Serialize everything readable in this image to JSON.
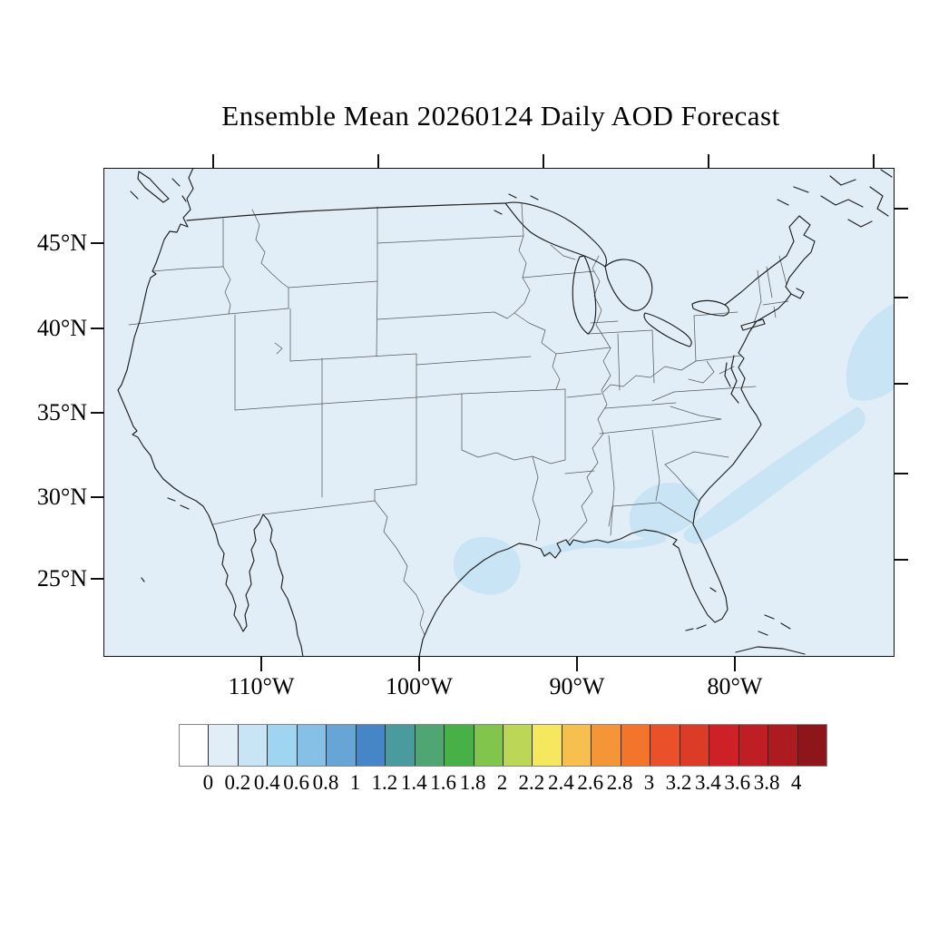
{
  "title": "Ensemble Mean 20260124 Daily AOD Forecast",
  "map": {
    "region": "Continental United States with state boundaries",
    "background_color": "#e1eef8",
    "patch_color": "#c9e4f5",
    "background_level": "0.0-0.2",
    "patch_level": "0.2-0.4"
  },
  "axes": {
    "left": {
      "labels": [
        "45°N",
        "40°N",
        "35°N",
        "30°N",
        "25°N"
      ]
    },
    "bottom": {
      "labels": [
        "110°W",
        "100°W",
        "90°W",
        "80°W"
      ]
    }
  },
  "colorbar": {
    "labels": [
      "0",
      "0.2",
      "0.4",
      "0.6",
      "0.8",
      "1",
      "1.2",
      "1.4",
      "1.6",
      "1.8",
      "2",
      "2.2",
      "2.4",
      "2.6",
      "2.8",
      "3",
      "3.2",
      "3.4",
      "3.6",
      "3.8",
      "4"
    ],
    "colors": [
      "#ffffff",
      "#e1eef8",
      "#c9e4f5",
      "#a0d5f2",
      "#86c0e6",
      "#67a5d7",
      "#4686c6",
      "#4a9b9e",
      "#4fa673",
      "#47b148",
      "#82c54d",
      "#bcd755",
      "#f5e85e",
      "#f7bf4d",
      "#f49538",
      "#f3752c",
      "#ea512a",
      "#dc3b28",
      "#cd2127",
      "#c01e25",
      "#ad1b20",
      "#8e1519"
    ]
  },
  "chart_data": {
    "type": "heatmap",
    "title": "Ensemble Mean 20260124 Daily AOD Forecast",
    "field": "Daily aerosol optical depth (AOD), ensemble mean forecast for 2026-01-24",
    "region": "Continental United States map",
    "lat_ticks": [
      "45°N",
      "40°N",
      "35°N",
      "30°N",
      "25°N"
    ],
    "lon_ticks": [
      "110°W",
      "100°W",
      "90°W",
      "80°W"
    ],
    "colorbar_levels": [
      0,
      0.2,
      0.4,
      0.6,
      0.8,
      1,
      1.2,
      1.4,
      1.6,
      1.8,
      2,
      2.2,
      2.4,
      2.6,
      2.8,
      3,
      3.2,
      3.4,
      3.6,
      3.8,
      4
    ],
    "colorbar_colors": [
      "#ffffff",
      "#e1eef8",
      "#c9e4f5",
      "#a0d5f2",
      "#86c0e6",
      "#67a5d7",
      "#4686c6",
      "#4a9b9e",
      "#4fa673",
      "#47b148",
      "#82c54d",
      "#bcd755",
      "#f5e85e",
      "#f7bf4d",
      "#f49538",
      "#f3752c",
      "#ea512a",
      "#dc3b28",
      "#cd2127",
      "#c01e25",
      "#ad1b20",
      "#8e1519"
    ],
    "legend_position": "bottom horizontal label bar",
    "grid": false,
    "values_summary": [
      {
        "region": "most of CONUS and surrounding ocean",
        "aod": "0.0-0.2"
      },
      {
        "region": "Texas Gulf coast near Houston/Galveston",
        "aod": "0.2-0.4"
      },
      {
        "region": "Louisiana-Mississippi-Alabama coastal strip",
        "aod": "0.2-0.4"
      },
      {
        "region": "central Georgia / eastern Alabama",
        "aod": "0.2-0.4"
      },
      {
        "region": "Atlantic offshore band from Georgia coast toward Cape Hatteras",
        "aod": "0.2-0.4"
      },
      {
        "region": "western Atlantic at eastern map edge near 35-40N",
        "aod": "0.2-0.4"
      }
    ]
  }
}
